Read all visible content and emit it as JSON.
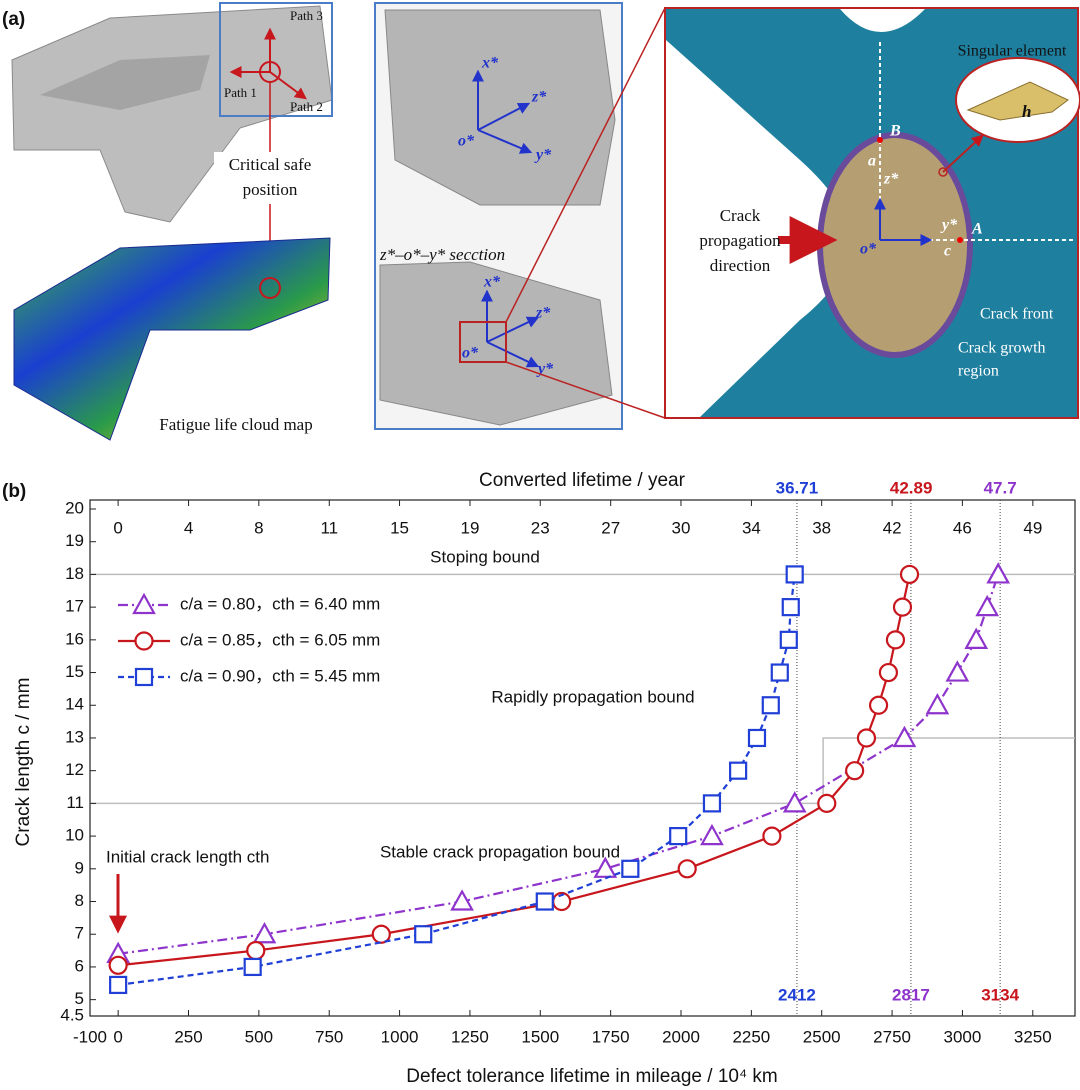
{
  "panel_a": {
    "label": "(a)",
    "path_labels": [
      "Path 3",
      "Path 1",
      "Path 2"
    ],
    "critical": [
      "Critical safe",
      "position"
    ],
    "cloud": "Fatigue life cloud map",
    "view_top_axes": [
      "x*",
      "z*",
      "o*",
      "y*"
    ],
    "section": "z*–o*–y* secction",
    "view_bottom_axes": [
      "x*",
      "z*",
      "o*",
      "y*"
    ],
    "detail": {
      "singular": "Singular element",
      "h": "h",
      "B": "B",
      "a": "a",
      "z": "z*",
      "direction": [
        "Crack",
        "propagation",
        "direction"
      ],
      "o": "o*",
      "y": "y*",
      "A": "A",
      "c": "c",
      "front": "Crack front",
      "growth": [
        "Crack growth",
        "region"
      ]
    }
  },
  "chart_data": {
    "type": "line",
    "panel_label": "(b)",
    "xlabel": "Defect tolerance lifetime in mileage / 10⁴ km",
    "ylabel": "Crack length c / mm",
    "x2label": "Converted lifetime / year",
    "xlim": [
      -100,
      3400
    ],
    "xticks": [
      -100,
      0,
      250,
      500,
      750,
      1000,
      1250,
      1500,
      1750,
      2000,
      2250,
      2500,
      2750,
      3000,
      3250
    ],
    "x2lim": [
      -1.52,
      51.75
    ],
    "x2ticks": [
      0,
      {
        "value": 3.81,
        "label": "4"
      },
      {
        "value": 7.61,
        "label": "8"
      },
      {
        "value": 11.42,
        "label": "11"
      },
      {
        "value": 15.22,
        "label": "15"
      },
      {
        "value": 19.03,
        "label": "19"
      },
      {
        "value": 22.83,
        "label": "23"
      },
      {
        "value": 26.64,
        "label": "27"
      },
      {
        "value": 30.44,
        "label": "30"
      },
      {
        "value": 34.25,
        "label": "34"
      },
      {
        "value": 38.05,
        "label": "38"
      },
      {
        "value": 41.86,
        "label": "42"
      },
      {
        "value": 45.66,
        "label": "46"
      },
      {
        "value": 49.47,
        "label": "49"
      }
    ],
    "ylim": [
      4.5,
      20
    ],
    "yticks": [
      4.5,
      5,
      6,
      7,
      8,
      9,
      10,
      11,
      12,
      13,
      14,
      15,
      16,
      17,
      18,
      19,
      20
    ],
    "series": [
      {
        "name": "c/a = 0.80，cth = 6.40 mm",
        "color": "#8e34cc",
        "marker": "triangle",
        "linestyle": "dashdot",
        "x": [
          0,
          520,
          1222,
          1731,
          2110,
          2404,
          2794,
          2911,
          2982,
          3049,
          3088,
          3127
        ],
        "values": [
          6.4,
          7,
          8,
          9,
          10,
          11,
          13,
          14,
          15,
          16,
          17,
          18
        ]
      },
      {
        "name": "c/a = 0.85，cth = 6.05 mm",
        "color": "#c8161d",
        "marker": "circle",
        "linestyle": "solid",
        "x": [
          0,
          489,
          935,
          1576,
          2022,
          2323,
          2518,
          2617,
          2659,
          2702,
          2737,
          2762,
          2787,
          2812
        ],
        "values": [
          6.05,
          6.5,
          7,
          8,
          9,
          10,
          11,
          12,
          13,
          14,
          15,
          16,
          17,
          18
        ]
      },
      {
        "name": "c/a = 0.90，cth = 5.45 mm",
        "color": "#1f3fd6",
        "marker": "square",
        "linestyle": "dashed",
        "x": [
          0,
          478,
          1084,
          1516,
          1820,
          1990,
          2110,
          2203,
          2270,
          2319,
          2351,
          2383,
          2390,
          2404
        ],
        "values": [
          5.45,
          6,
          7,
          8,
          9,
          10,
          11,
          12,
          13,
          14,
          15,
          16,
          17,
          18
        ]
      }
    ],
    "bounds": [
      {
        "label": "Stoping bound",
        "x": [
          -100,
          3400
        ],
        "y": [
          18,
          18
        ]
      },
      {
        "label": "Rapidly propagation bound",
        "x": [
          2505,
          2505,
          3400
        ],
        "y": [
          11,
          13,
          13
        ]
      },
      {
        "label": "Stable crack propagation bound",
        "x": [
          -100,
          2505
        ],
        "y": [
          11,
          11
        ]
      }
    ],
    "vlines": [
      {
        "x": 2412,
        "x_color": "#1f3fd6",
        "x2": 36.71,
        "x2_color": "#1f3fd6"
      },
      {
        "x": 2817,
        "x_color": "#8e34cc",
        "x2": 42.89,
        "x2_color": "#c8161d"
      },
      {
        "x": 3134,
        "x_color": "#c8161d",
        "x2": 47.7,
        "x2_color": "#8e34cc"
      }
    ],
    "annotation": "Initial crack length  cth",
    "annotation_color": "#c8161d"
  }
}
